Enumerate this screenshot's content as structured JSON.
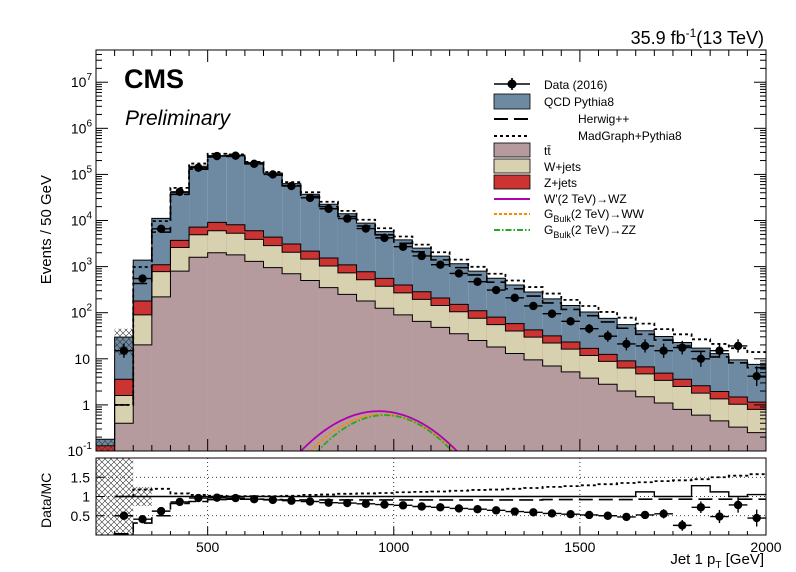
{
  "header": {
    "lumi_prefix": "35.9 fb",
    "lumi_exp": "-1",
    "lumi_suffix": "(13 TeV)",
    "experiment": "CMS",
    "status": "Preliminary"
  },
  "legend": {
    "data": "Data (2016)",
    "qcd": "QCD Pythia8",
    "herwig": "Herwig++",
    "madgraph": "MadGraph+Pythia8",
    "ttbar": "tt̄",
    "wjets": "W+jets",
    "zjets": "Z+jets",
    "wprime": "W'(2 TeV)→WZ",
    "gbulk_ww_main": "G",
    "gbulk_ww_sub": "Bulk",
    "gbulk_ww_rest": "(2 TeV)→WW",
    "gbulk_zz_main": "G",
    "gbulk_zz_sub": "Bulk",
    "gbulk_zz_rest": "(2 TeV)→ZZ"
  },
  "axes": {
    "ylabel_top": "Events / 50 GeV",
    "ylabel_bottom": "Data/MC",
    "xlabel_main": "Jet 1 p",
    "xlabel_sub": "T",
    "xlabel_unit": " [GeV]"
  },
  "colors": {
    "qcd": "#6d8aa2",
    "wjets": "#d8d1b0",
    "zjets": "#cc3333",
    "ttbar": "#b59a9e",
    "wprime": "#b000b0",
    "ww": "#ff8800",
    "zz": "#22aa22"
  },
  "chart_data": {
    "type": "bar",
    "x_edges_start": 200,
    "bin_width": 50,
    "xlim": [
      200,
      2000
    ],
    "ylim": [
      0.1,
      50000000
    ],
    "yscale": "log",
    "x_ticks": [
      500,
      1000,
      1500,
      2000
    ],
    "y_ticks": [
      {
        "v": 0.1,
        "label": "10",
        "exp": "-1"
      },
      {
        "v": 1,
        "label": "1",
        "exp": ""
      },
      {
        "v": 10,
        "label": "10",
        "exp": ""
      },
      {
        "v": 100,
        "label": "10",
        "exp": "2"
      },
      {
        "v": 1000,
        "label": "10",
        "exp": "3"
      },
      {
        "v": 10000,
        "label": "10",
        "exp": "4"
      },
      {
        "v": 100000,
        "label": "10",
        "exp": "5"
      },
      {
        "v": 1000000,
        "label": "10",
        "exp": "6"
      },
      {
        "v": 10000000,
        "label": "10",
        "exp": "7"
      }
    ],
    "stack": {
      "ttbar": [
        0.05,
        0.4,
        20,
        220,
        800,
        1600,
        2000,
        1800,
        1300,
        950,
        700,
        500,
        350,
        250,
        180,
        125,
        90,
        65,
        48,
        35,
        25,
        18,
        13,
        9.5,
        7,
        5.2,
        3.8,
        2.8,
        2,
        1.5,
        1.1,
        0.8,
        0.6,
        0.45,
        0.33,
        0.25
      ],
      "wjets": [
        0.05,
        1.2,
        70,
        560,
        1800,
        3300,
        4000,
        3500,
        2600,
        1900,
        1350,
        950,
        680,
        480,
        340,
        250,
        180,
        130,
        95,
        70,
        51,
        37,
        27,
        20,
        15,
        11,
        8,
        6,
        4.3,
        3.2,
        2.3,
        1.7,
        1.2,
        0.9,
        0.7,
        0.55
      ],
      "zjets": [
        0.03,
        2.0,
        90,
        320,
        1100,
        2300,
        3100,
        2800,
        2100,
        1500,
        1050,
        720,
        510,
        360,
        255,
        180,
        130,
        90,
        66,
        47,
        34,
        25,
        18,
        13,
        9.5,
        7,
        5,
        3.7,
        2.7,
        2,
        1.5,
        1.1,
        0.8,
        0.6,
        0.45,
        0.35
      ],
      "qcd": [
        0.05,
        26,
        1200,
        10000,
        37000,
        143000,
        247000,
        254000,
        174000,
        103000,
        60000,
        35000,
        21000,
        12900,
        8000,
        5200,
        3400,
        2230,
        1480,
        1000,
        690,
        480,
        340,
        238,
        168,
        120,
        87,
        63,
        46,
        34,
        25.5,
        19,
        14.5,
        11,
        8,
        6.4
      ]
    },
    "qcd_labels": [
      0.17,
      29,
      1380,
      11100,
      40700,
      150000,
      256000,
      262000,
      180000,
      107000,
      62500,
      36700,
      22200,
      13700,
      8600,
      5600,
      3800,
      2500,
      1690,
      1150,
      800,
      560,
      400,
      280,
      200,
      143,
      103,
      75,
      55,
      41,
      30.4,
      22.8,
      17.1,
      12.9,
      9.5,
      7.5
    ],
    "data": [
      null,
      15,
      550,
      6600,
      42000,
      140000,
      250000,
      255000,
      170000,
      100000,
      56000,
      31000,
      18000,
      11000,
      6700,
      4200,
      2700,
      1700,
      1100,
      710,
      470,
      310,
      210,
      140,
      95,
      65,
      45,
      31,
      21,
      19,
      15,
      11,
      8.5,
      5.9,
      5.4,
      4.2
    ],
    "data_override": {
      "31": 17.5,
      "32": 10,
      "33": 15,
      "34": 19
    },
    "herwig": [
      null,
      1,
      430,
      5600,
      37000,
      130000,
      240000,
      245000,
      170000,
      97000,
      57000,
      33500,
      20000,
      12200,
      7600,
      4900,
      3200,
      2100,
      1400,
      950,
      660,
      460,
      330,
      230,
      163,
      118,
      86,
      63,
      46,
      34,
      25.5,
      19,
      14.5,
      11,
      8.2,
      6.4
    ],
    "madgraph": [
      null,
      1,
      980,
      9700,
      51000,
      172000,
      280000,
      272000,
      187000,
      113000,
      68000,
      41000,
      25500,
      16200,
      10400,
      6800,
      4500,
      3000,
      2050,
      1420,
      990,
      700,
      500,
      360,
      260,
      190,
      140,
      104,
      78,
      58,
      44,
      34,
      26.5,
      21,
      17,
      14
    ],
    "signal_x": [
      700,
      1200
    ],
    "signal_peak": 960,
    "signal_height": [
      0.73,
      0.62,
      0.6
    ],
    "ratio": {
      "ylim": [
        0,
        2
      ],
      "ticks": [
        0.5,
        1,
        1.5
      ],
      "data": [
        null,
        0.5,
        0.41,
        0.62,
        0.86,
        0.96,
        0.97,
        0.96,
        0.93,
        0.91,
        0.89,
        0.87,
        0.84,
        0.83,
        0.81,
        0.79,
        0.77,
        0.74,
        0.72,
        0.69,
        0.67,
        0.64,
        0.61,
        0.59,
        0.56,
        0.54,
        0.52,
        0.5,
        0.47,
        0.52,
        0.55,
        0.53,
        0.53,
        0.48,
        0.65,
        0.62
      ],
      "data_err": [
        null,
        0.1,
        0.05,
        0.02,
        0.01,
        0.01,
        0.01,
        0.01,
        0.01,
        0.01,
        0.01,
        0.01,
        0.01,
        0.01,
        0.01,
        0.01,
        0.01,
        0.02,
        0.02,
        0.02,
        0.03,
        0.03,
        0.04,
        0.04,
        0.05,
        0.06,
        0.07,
        0.08,
        0.09,
        0.1,
        0.12,
        0.14,
        0.15,
        0.17,
        0.2,
        0.22
      ],
      "data_override": {
        "31": 0.25,
        "32": 0.72,
        "33": 0.48,
        "34": 0.78,
        "35": 0.44
      },
      "herwig": [
        null,
        0.03,
        0.31,
        0.5,
        0.82,
        0.87,
        0.92,
        0.93,
        0.93,
        0.92,
        0.91,
        0.91,
        0.91,
        0.91,
        0.91,
        0.91,
        0.91,
        0.91,
        0.91,
        0.91,
        0.91,
        0.91,
        0.91,
        0.91,
        0.92,
        0.92,
        0.92,
        0.92,
        0.92,
        0.93,
        0.93,
        0.93,
        0.93,
        0.93,
        0.93,
        0.93
      ],
      "madgraph": [
        null,
        1.0,
        1.18,
        1.2,
        1.08,
        1.04,
        1.02,
        1.01,
        1.01,
        1.01,
        1.02,
        1.04,
        1.05,
        1.07,
        1.08,
        1.09,
        1.11,
        1.12,
        1.13,
        1.15,
        1.17,
        1.18,
        1.2,
        1.22,
        1.25,
        1.27,
        1.29,
        1.32,
        1.35,
        1.37,
        1.4,
        1.42,
        1.45,
        1.5,
        1.54,
        1.58
      ],
      "mc_unc_bins": [
        0,
        1,
        2
      ],
      "ratio_solid": [
        null,
        1.0,
        1.0,
        1.0,
        1.0,
        1.0,
        1.0,
        1.0,
        1.0,
        1.0,
        1.0,
        1.0,
        1.0,
        1.0,
        1.0,
        1.0,
        1.0,
        1.0,
        1.0,
        1.0,
        1.0,
        1.0,
        1.0,
        1.0,
        1.0,
        1.0,
        1.0,
        1.0,
        1.0,
        1.12,
        1.0,
        1.0,
        1.28,
        1.12,
        1.0,
        1.05
      ]
    }
  }
}
